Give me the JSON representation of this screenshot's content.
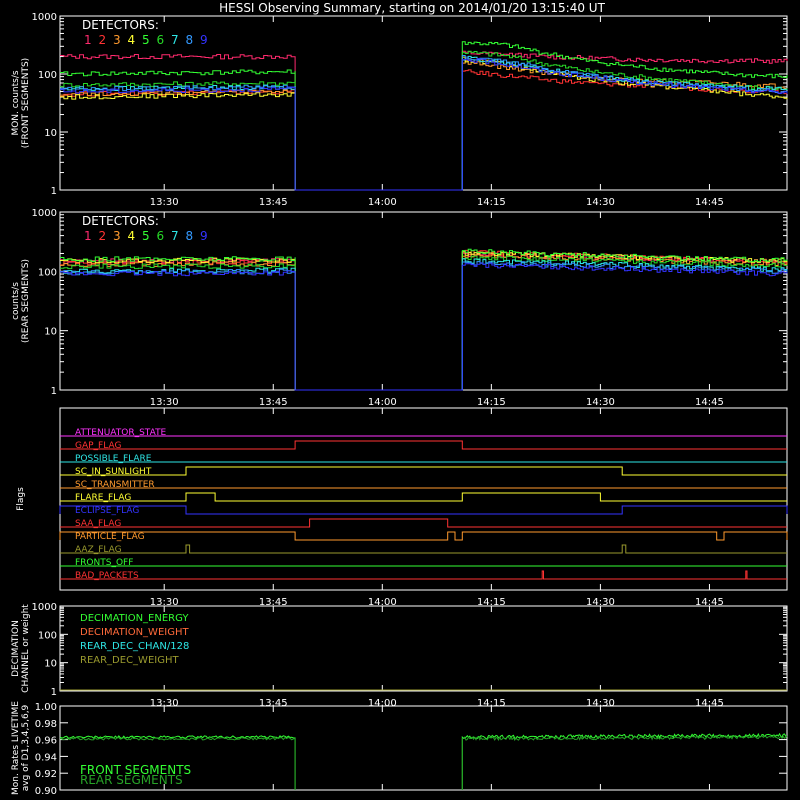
{
  "title": "HESSI Observing Summary, starting on 2014/01/20 13:15:40 UT",
  "time_axis": {
    "start": "13:15:40",
    "end": "14:55:40",
    "ticks": [
      "13:30",
      "13:45",
      "14:00",
      "14:15",
      "14:30",
      "14:45"
    ]
  },
  "detectors": {
    "label": "DETECTORS:",
    "items": [
      {
        "n": "1",
        "color": "#ff2a6d"
      },
      {
        "n": "2",
        "color": "#ff3333"
      },
      {
        "n": "3",
        "color": "#ff9a2e"
      },
      {
        "n": "4",
        "color": "#ffff33"
      },
      {
        "n": "5",
        "color": "#33ff33"
      },
      {
        "n": "6",
        "color": "#27d927"
      },
      {
        "n": "7",
        "color": "#2ee6e6"
      },
      {
        "n": "8",
        "color": "#3399ff"
      },
      {
        "n": "9",
        "color": "#3333ff"
      }
    ]
  },
  "chart_data": [
    {
      "id": "front",
      "type": "line",
      "ylabel": [
        "MON. counts/s",
        "(FRONT SEGMENTS)"
      ],
      "yscale": "log",
      "ylim": [
        1,
        1000
      ],
      "yticks": [
        "1",
        "10",
        "100",
        "1000"
      ],
      "gap": [
        "13:48:00",
        "14:11:00"
      ],
      "series": [
        {
          "detector": "1",
          "color": "#ff2a6d",
          "before": [
            200,
            200
          ],
          "after": [
            230,
            220,
            200,
            190,
            180,
            175,
            170,
            170,
            165
          ]
        },
        {
          "detector": "2",
          "color": "#ff3333",
          "before": [
            45,
            50
          ],
          "after": [
            110,
            95,
            80,
            70,
            65,
            60,
            55,
            52,
            50
          ]
        },
        {
          "detector": "3",
          "color": "#ff9a2e",
          "before": [
            45,
            50
          ],
          "after": [
            160,
            130,
            105,
            90,
            80,
            75,
            70,
            65,
            60
          ]
        },
        {
          "detector": "4",
          "color": "#ffff33",
          "before": [
            40,
            45
          ],
          "after": [
            180,
            150,
            110,
            85,
            70,
            60,
            52,
            45,
            40
          ]
        },
        {
          "detector": "5",
          "color": "#33ff33",
          "before": [
            100,
            110
          ],
          "after": [
            350,
            320,
            230,
            170,
            140,
            120,
            105,
            95,
            90
          ]
        },
        {
          "detector": "6",
          "color": "#27d927",
          "before": [
            65,
            70
          ],
          "after": [
            240,
            210,
            150,
            115,
            95,
            80,
            70,
            60,
            55
          ]
        },
        {
          "detector": "7",
          "color": "#2ee6e6",
          "before": [
            55,
            60
          ],
          "after": [
            190,
            160,
            120,
            95,
            80,
            70,
            62,
            58,
            55
          ]
        },
        {
          "detector": "8",
          "color": "#3399ff",
          "before": [
            55,
            60
          ],
          "after": [
            200,
            170,
            125,
            95,
            80,
            70,
            60,
            55,
            50
          ]
        },
        {
          "detector": "9",
          "color": "#3333ff",
          "before": [
            50,
            55
          ],
          "after": [
            180,
            150,
            110,
            90,
            75,
            65,
            58,
            52,
            48
          ]
        }
      ]
    },
    {
      "id": "rear",
      "type": "line",
      "ylabel": [
        "counts/s",
        "(REAR SEGMENTS)"
      ],
      "yscale": "log",
      "ylim": [
        1,
        1000
      ],
      "yticks": [
        "1",
        "10",
        "100",
        "1000"
      ],
      "gap": [
        "13:48:00",
        "14:11:00"
      ],
      "series": [
        {
          "detector": "1",
          "color": "#ff2a6d",
          "before": [
            150,
            155
          ],
          "after": [
            190,
            185,
            180,
            175,
            170,
            165,
            160,
            155,
            150
          ]
        },
        {
          "detector": "2",
          "color": "#ff3333",
          "before": [
            140,
            145
          ],
          "after": [
            210,
            200,
            190,
            185,
            175,
            165,
            160,
            150,
            145
          ]
        },
        {
          "detector": "3",
          "color": "#ff9a2e",
          "before": [
            130,
            135
          ],
          "after": [
            190,
            180,
            175,
            170,
            160,
            150,
            145,
            140,
            135
          ]
        },
        {
          "detector": "4",
          "color": "#ffff33",
          "before": [
            150,
            155
          ],
          "after": [
            200,
            195,
            190,
            185,
            175,
            165,
            160,
            155,
            150
          ]
        },
        {
          "detector": "5",
          "color": "#33ff33",
          "before": [
            160,
            165
          ],
          "after": [
            220,
            210,
            200,
            190,
            180,
            170,
            165,
            160,
            155
          ]
        },
        {
          "detector": "6",
          "color": "#27d927",
          "before": [
            120,
            125
          ],
          "after": [
            170,
            165,
            160,
            155,
            150,
            140,
            135,
            130,
            125
          ]
        },
        {
          "detector": "7",
          "color": "#2ee6e6",
          "before": [
            100,
            105
          ],
          "after": [
            150,
            145,
            140,
            135,
            130,
            120,
            115,
            110,
            105
          ]
        },
        {
          "detector": "8",
          "color": "#3399ff",
          "before": [
            95,
            100
          ],
          "after": [
            140,
            135,
            130,
            125,
            120,
            115,
            110,
            105,
            100
          ]
        },
        {
          "detector": "9",
          "color": "#3333ff",
          "before": [
            90,
            95
          ],
          "after": [
            130,
            125,
            120,
            115,
            110,
            105,
            100,
            95,
            90
          ]
        }
      ]
    },
    {
      "id": "flags",
      "type": "line",
      "ylabel": [
        "Flags"
      ],
      "flags": [
        {
          "name": "ATTENUATOR_STATE",
          "color": "#ff33ff",
          "on": []
        },
        {
          "name": "GAP_FLAG",
          "color": "#ff3333",
          "on": [
            [
              "13:48:00",
              "14:11:00"
            ]
          ]
        },
        {
          "name": "POSSIBLE_FLARE",
          "color": "#2ee6e6",
          "on": []
        },
        {
          "name": "SC_IN_SUNLIGHT",
          "color": "#ffff33",
          "on": [
            [
              "13:33:00",
              "14:33:00"
            ]
          ]
        },
        {
          "name": "SC_TRANSMITTER",
          "color": "#ff9a2e",
          "on": []
        },
        {
          "name": "FLARE_FLAG",
          "color": "#ffff33",
          "on": [
            [
              "13:33:00",
              "13:37:00"
            ],
            [
              "14:11:00",
              "14:30:00"
            ]
          ]
        },
        {
          "name": "ECLIPSE_FLAG",
          "color": "#3333ff",
          "on": [
            [
              "13:15:40",
              "13:33:00"
            ],
            [
              "14:33:00",
              "14:55:40"
            ]
          ]
        },
        {
          "name": "SAA_FLAG",
          "color": "#ff3333",
          "on": [
            [
              "13:50:00",
              "14:09:00"
            ]
          ]
        },
        {
          "name": "PARTICLE_FLAG",
          "color": "#ff9a2e",
          "on": [
            [
              "13:15:40",
              "13:48:00"
            ],
            [
              "14:09:00",
              "14:10:00"
            ],
            [
              "14:11:00",
              "14:46:00"
            ],
            [
              "14:47:00",
              "14:55:40"
            ]
          ]
        },
        {
          "name": "AAZ_FLAG",
          "color": "#9a9a2e",
          "on": [
            [
              "13:33:00",
              "13:33:30"
            ],
            [
              "14:33:00",
              "14:33:30"
            ]
          ]
        },
        {
          "name": "FRONTS_OFF",
          "color": "#33ff33",
          "on": []
        },
        {
          "name": "BAD_PACKETS",
          "color": "#ff3333",
          "on": [
            [
              "14:22:00",
              "14:22:10"
            ],
            [
              "14:50:00",
              "14:50:10"
            ]
          ]
        }
      ]
    },
    {
      "id": "decimation",
      "type": "line",
      "ylabel": [
        "DECIMATION",
        "CHANNEL or weight"
      ],
      "yscale": "log",
      "ylim": [
        1,
        1000
      ],
      "yticks": [
        "1",
        "10",
        "100",
        "1000"
      ],
      "legend": [
        {
          "label": "DECIMATION_ENERGY",
          "color": "#33ff33"
        },
        {
          "label": "DECIMATION_WEIGHT",
          "color": "#ff6a3a"
        },
        {
          "label": "REAR_DEC_CHAN/128",
          "color": "#2ee6e6"
        },
        {
          "label": "REAR_DEC_WEIGHT",
          "color": "#9a9a2e"
        }
      ],
      "level": 1
    },
    {
      "id": "livetime",
      "type": "line",
      "ylabel": [
        "Mon. Rates LIVETIME",
        "avg of D1,3,4,5,6,9"
      ],
      "ylim": [
        0.9,
        1.0
      ],
      "yticks": [
        "0.90",
        "0.92",
        "0.94",
        "0.96",
        "0.98",
        "1.00"
      ],
      "gap": [
        "13:48:00",
        "14:11:00"
      ],
      "legend": [
        {
          "label": "FRONT SEGMENTS",
          "color": "#33ff33"
        },
        {
          "label": "REAR SEGMENTS",
          "color": "#27a327"
        }
      ],
      "series": [
        {
          "name": "FRONT SEGMENTS",
          "color": "#33ff33",
          "value": 0.963
        },
        {
          "name": "REAR SEGMENTS",
          "color": "#27a327",
          "value": 0.961
        }
      ]
    }
  ]
}
